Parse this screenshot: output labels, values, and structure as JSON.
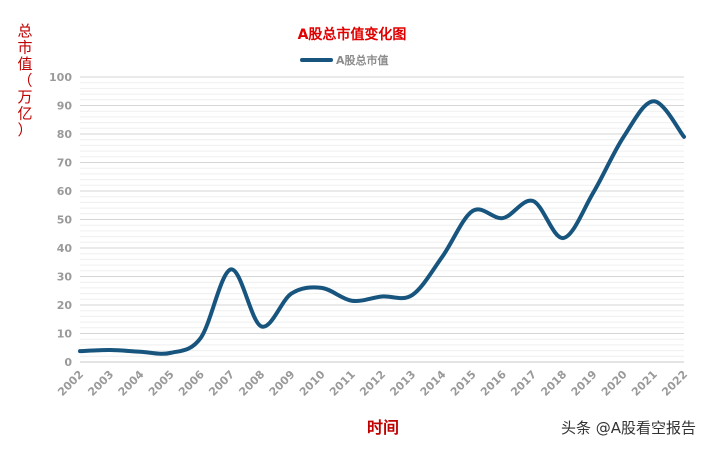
{
  "chart_data": {
    "type": "line",
    "title": "A股总市值变化图",
    "ylabel": "总市值（万亿）",
    "xlabel": "时间",
    "legend": "top-center",
    "grid": true,
    "ylim": [
      0,
      100
    ],
    "yticks": [
      0,
      10,
      20,
      30,
      40,
      50,
      60,
      70,
      80,
      90,
      100
    ],
    "categories": [
      "2002",
      "2003",
      "2004",
      "2005",
      "2006",
      "2007",
      "2008",
      "2009",
      "2010",
      "2011",
      "2012",
      "2013",
      "2014",
      "2015",
      "2016",
      "2017",
      "2018",
      "2019",
      "2020",
      "2021",
      "2022"
    ],
    "series": [
      {
        "name": "A股总市值",
        "color": "#17557e",
        "values": [
          3.8,
          4.2,
          3.6,
          3.2,
          8.5,
          32.5,
          12.5,
          24.0,
          26.0,
          21.5,
          23.0,
          23.5,
          37.0,
          53.0,
          50.5,
          56.5,
          43.5,
          59.5,
          79.0,
          91.5,
          79.0
        ]
      }
    ]
  },
  "watermark": "头条 @A股看空报告"
}
